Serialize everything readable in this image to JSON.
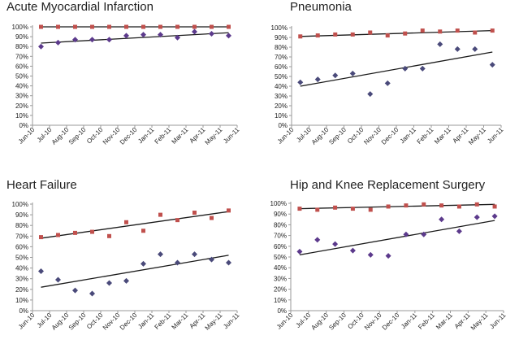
{
  "chart_data": [
    {
      "type": "scatter",
      "title": "Acute Myocardial Infarction",
      "categories": [
        "Jun-10",
        "Jul-10",
        "Aug-10",
        "Sep-10",
        "Oct-10",
        "Nov-10",
        "Dec-10",
        "Jan-11",
        "Feb-11",
        "Mar-11",
        "Apr-11",
        "May-11",
        "Jun-11"
      ],
      "yticks": [
        "0%",
        "10%",
        "20%",
        "30%",
        "40%",
        "50%",
        "60%",
        "70%",
        "80%",
        "90%",
        "100%"
      ],
      "ylim": [
        0,
        100
      ],
      "grid": false,
      "series": [
        {
          "values": [
            100,
            100,
            100,
            100,
            100,
            100,
            100,
            100,
            100,
            100,
            100,
            100
          ],
          "marker": "square",
          "color": "#c0504d",
          "trendline": [
            100,
            100
          ]
        },
        {
          "values": [
            80,
            84,
            87,
            87,
            87,
            91,
            92,
            92,
            89,
            95,
            93,
            91
          ],
          "marker": "diamond",
          "color": "#5c3a8c",
          "trendline": [
            83.5,
            94
          ]
        }
      ]
    },
    {
      "type": "scatter",
      "title": "Pneumonia",
      "categories": [
        "Jun-10",
        "Jul-10",
        "Aug-10",
        "Sep-10",
        "Oct-10",
        "Nov-10",
        "Dec-10",
        "Jan-11",
        "Feb-11",
        "Mar-11",
        "Apr-11",
        "May-11",
        "Jun-11"
      ],
      "yticks": [
        "0%",
        "10%",
        "20%",
        "30%",
        "40%",
        "50%",
        "60%",
        "70%",
        "80%",
        "90%",
        "100%"
      ],
      "ylim": [
        0,
        100
      ],
      "grid": false,
      "series": [
        {
          "values": [
            91,
            92,
            93,
            93,
            95,
            92,
            94,
            97,
            96,
            97,
            95,
            97
          ],
          "marker": "square",
          "color": "#c0504d",
          "trendline": [
            91,
            97
          ]
        },
        {
          "values": [
            44,
            47,
            51,
            53,
            32,
            43,
            58,
            58,
            83,
            78,
            78,
            62
          ],
          "marker": "diamond",
          "color": "#4a4a7a",
          "trendline": [
            40,
            75
          ]
        }
      ]
    },
    {
      "type": "scatter",
      "title": "Heart Failure",
      "categories": [
        "Jun-10",
        "Jul-10",
        "Aug-10",
        "Sep-10",
        "Oct-10",
        "Nov-10",
        "Dec-10",
        "Jan-11",
        "Feb-11",
        "Mar-11",
        "Apr-11",
        "May-11",
        "Jun-11"
      ],
      "yticks": [
        "0%",
        "10%",
        "20%",
        "30%",
        "40%",
        "50%",
        "60%",
        "70%",
        "80%",
        "90%",
        "100%"
      ],
      "ylim": [
        0,
        100
      ],
      "grid": false,
      "series": [
        {
          "values": [
            69,
            71,
            73,
            74,
            70,
            83,
            75,
            90,
            85,
            92,
            87,
            94
          ],
          "marker": "square",
          "color": "#c0504d",
          "trendline": [
            68,
            93
          ]
        },
        {
          "values": [
            37,
            29,
            19,
            16,
            26,
            28,
            44,
            53,
            45,
            53,
            48,
            45
          ],
          "marker": "diamond",
          "color": "#4a4a7a",
          "trendline": [
            22,
            52
          ]
        }
      ]
    },
    {
      "type": "scatter",
      "title": "Hip and Knee Replacement Surgery",
      "categories": [
        "Jun-10",
        "Jul-10",
        "Aug-10",
        "Sep-10",
        "Oct-10",
        "Nov-10",
        "Dec-10",
        "Jan-11",
        "Feb-11",
        "Mar-11",
        "Apr-11",
        "May-11",
        "Jun-11"
      ],
      "yticks": [
        "0%",
        "10%",
        "20%",
        "30%",
        "40%",
        "50%",
        "60%",
        "70%",
        "80%",
        "90%",
        "100%"
      ],
      "ylim": [
        0,
        100
      ],
      "grid": false,
      "series": [
        {
          "values": [
            95,
            94,
            96,
            95,
            94,
            97,
            98,
            99,
            98,
            97,
            99,
            97
          ],
          "marker": "square",
          "color": "#c0504d",
          "trendline": [
            95,
            99
          ]
        },
        {
          "values": [
            55,
            66,
            62,
            56,
            52,
            51,
            71,
            71,
            85,
            74,
            87,
            88
          ],
          "marker": "diamond",
          "color": "#5c3a8c",
          "trendline": [
            52,
            84
          ]
        }
      ]
    }
  ]
}
